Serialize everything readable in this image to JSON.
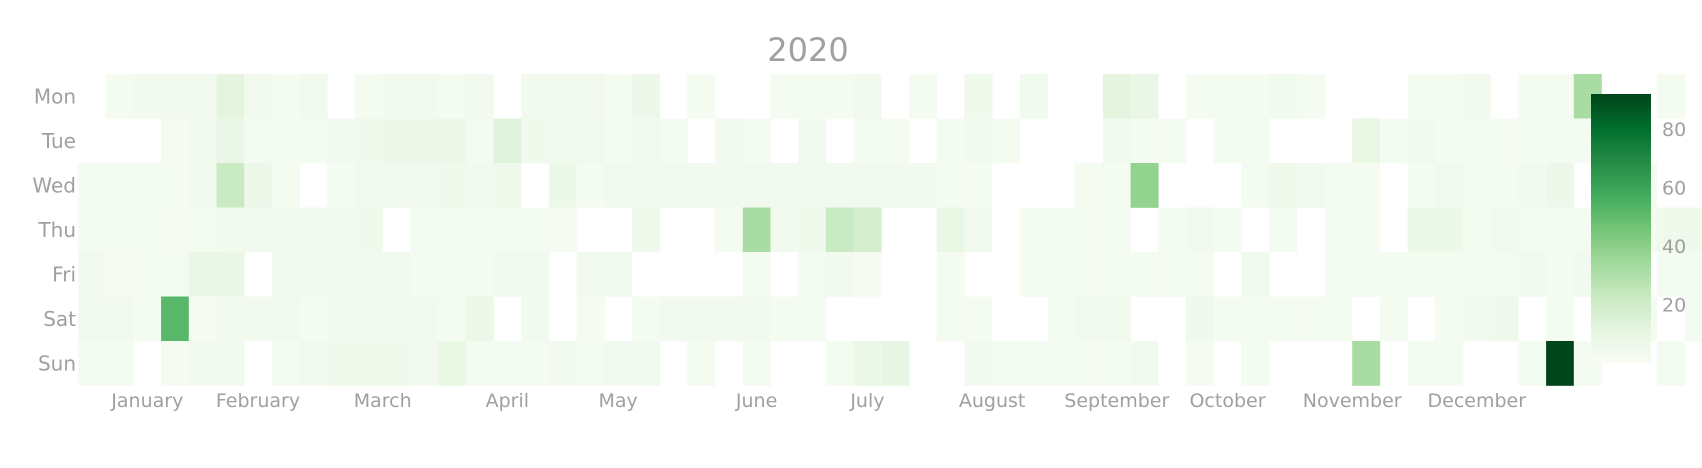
{
  "chart_data": {
    "type": "heatmap",
    "subtype": "calendar",
    "title": "2020",
    "year": 2020,
    "colorscale": "Greens",
    "zmin": 0,
    "zmax": 92,
    "colorbar_ticks": [
      20,
      40,
      60,
      80
    ],
    "grid": false,
    "weekday_labels": [
      "Mon",
      "Tue",
      "Wed",
      "Thu",
      "Fri",
      "Sat",
      "Sun"
    ],
    "month_labels": [
      "January",
      "February",
      "March",
      "April",
      "May",
      "June",
      "July",
      "August",
      "September",
      "October",
      "November",
      "December"
    ],
    "weeks": [
      [
        null,
        null,
        2,
        2,
        3,
        3,
        2
      ],
      [
        2,
        null,
        2,
        2,
        1,
        3,
        2
      ],
      [
        3,
        null,
        2,
        2,
        2,
        2,
        null
      ],
      [
        3,
        2,
        2,
        1,
        2,
        52,
        2
      ],
      [
        3,
        3,
        3,
        2,
        8,
        1,
        3
      ],
      [
        12,
        8,
        22,
        3,
        8,
        3,
        3
      ],
      [
        3,
        2,
        6,
        3,
        null,
        3,
        null
      ],
      [
        2,
        2,
        2,
        3,
        3,
        3,
        2
      ],
      [
        3,
        2,
        null,
        3,
        3,
        2,
        3
      ],
      [
        null,
        3,
        2,
        4,
        3,
        3,
        5
      ],
      [
        2,
        5,
        3,
        5,
        3,
        3,
        5
      ],
      [
        3,
        6,
        3,
        null,
        3,
        3,
        5
      ],
      [
        3,
        6,
        3,
        2,
        2,
        3,
        3
      ],
      [
        2,
        6,
        5,
        2,
        2,
        2,
        9
      ],
      [
        3,
        2,
        3,
        2,
        2,
        7,
        2
      ],
      [
        null,
        13,
        5,
        2,
        4,
        null,
        2
      ],
      [
        3,
        5,
        null,
        2,
        4,
        3,
        2
      ],
      [
        3,
        4,
        7,
        1,
        null,
        null,
        3
      ],
      [
        3,
        4,
        2,
        null,
        3,
        2,
        2
      ],
      [
        2,
        2,
        3,
        null,
        3,
        null,
        3
      ],
      [
        6,
        3,
        4,
        5,
        null,
        2,
        4
      ],
      [
        null,
        2,
        3,
        null,
        null,
        3,
        null
      ],
      [
        2,
        null,
        3,
        null,
        null,
        3,
        2
      ],
      [
        null,
        3,
        3,
        2,
        null,
        3,
        null
      ],
      [
        null,
        2,
        3,
        32,
        2,
        3,
        2
      ],
      [
        2,
        null,
        4,
        3,
        null,
        2,
        null
      ],
      [
        2,
        3,
        4,
        5,
        2,
        2,
        null
      ],
      [
        2,
        null,
        4,
        22,
        3,
        null,
        2
      ],
      [
        3,
        2,
        3,
        18,
        1,
        null,
        7
      ],
      [
        null,
        2,
        3,
        null,
        null,
        null,
        10
      ],
      [
        2,
        null,
        3,
        null,
        null,
        null,
        null
      ],
      [
        null,
        2,
        2,
        9,
        2,
        2,
        null
      ],
      [
        5,
        3,
        2,
        3,
        null,
        2,
        3
      ],
      [
        null,
        2,
        null,
        null,
        null,
        null,
        2
      ],
      [
        4,
        null,
        null,
        2,
        2,
        null,
        2
      ],
      [
        null,
        null,
        null,
        2,
        2,
        2,
        2
      ],
      [
        null,
        null,
        2,
        2,
        2,
        3,
        2
      ],
      [
        12,
        3,
        2,
        2,
        2,
        4,
        2
      ],
      [
        8,
        2,
        38,
        null,
        2,
        null,
        3
      ],
      [
        null,
        2,
        null,
        2,
        2,
        null,
        null
      ],
      [
        2,
        null,
        null,
        3,
        2,
        5,
        2
      ],
      [
        2,
        2,
        null,
        2,
        null,
        2,
        null
      ],
      [
        2,
        2,
        2,
        null,
        4,
        2,
        2
      ],
      [
        4,
        null,
        5,
        2,
        null,
        2,
        null
      ],
      [
        2,
        null,
        4,
        null,
        null,
        2,
        null
      ],
      [
        null,
        null,
        2,
        2,
        2,
        2,
        null
      ],
      [
        null,
        9,
        2,
        2,
        2,
        null,
        32
      ],
      [
        null,
        2,
        null,
        null,
        2,
        2,
        null
      ],
      [
        2,
        3,
        2,
        7,
        2,
        null,
        2
      ],
      [
        2,
        2,
        3,
        7,
        2,
        2,
        2
      ],
      [
        3,
        2,
        2,
        2,
        2,
        4,
        null
      ],
      [
        null,
        2,
        2,
        3,
        2,
        5,
        null
      ],
      [
        2,
        2,
        4,
        2,
        3,
        null,
        2
      ],
      [
        2,
        2,
        6,
        2,
        2,
        2,
        92
      ],
      [
        32,
        2,
        null,
        2,
        4,
        null,
        2
      ],
      [
        null,
        2,
        2,
        5,
        2,
        null,
        null
      ],
      [
        null,
        null,
        2,
        2,
        null,
        2,
        null
      ],
      [
        2,
        null,
        null,
        5,
        2,
        null,
        2
      ],
      [
        null,
        null,
        null,
        5,
        2,
        2,
        null
      ]
    ]
  }
}
